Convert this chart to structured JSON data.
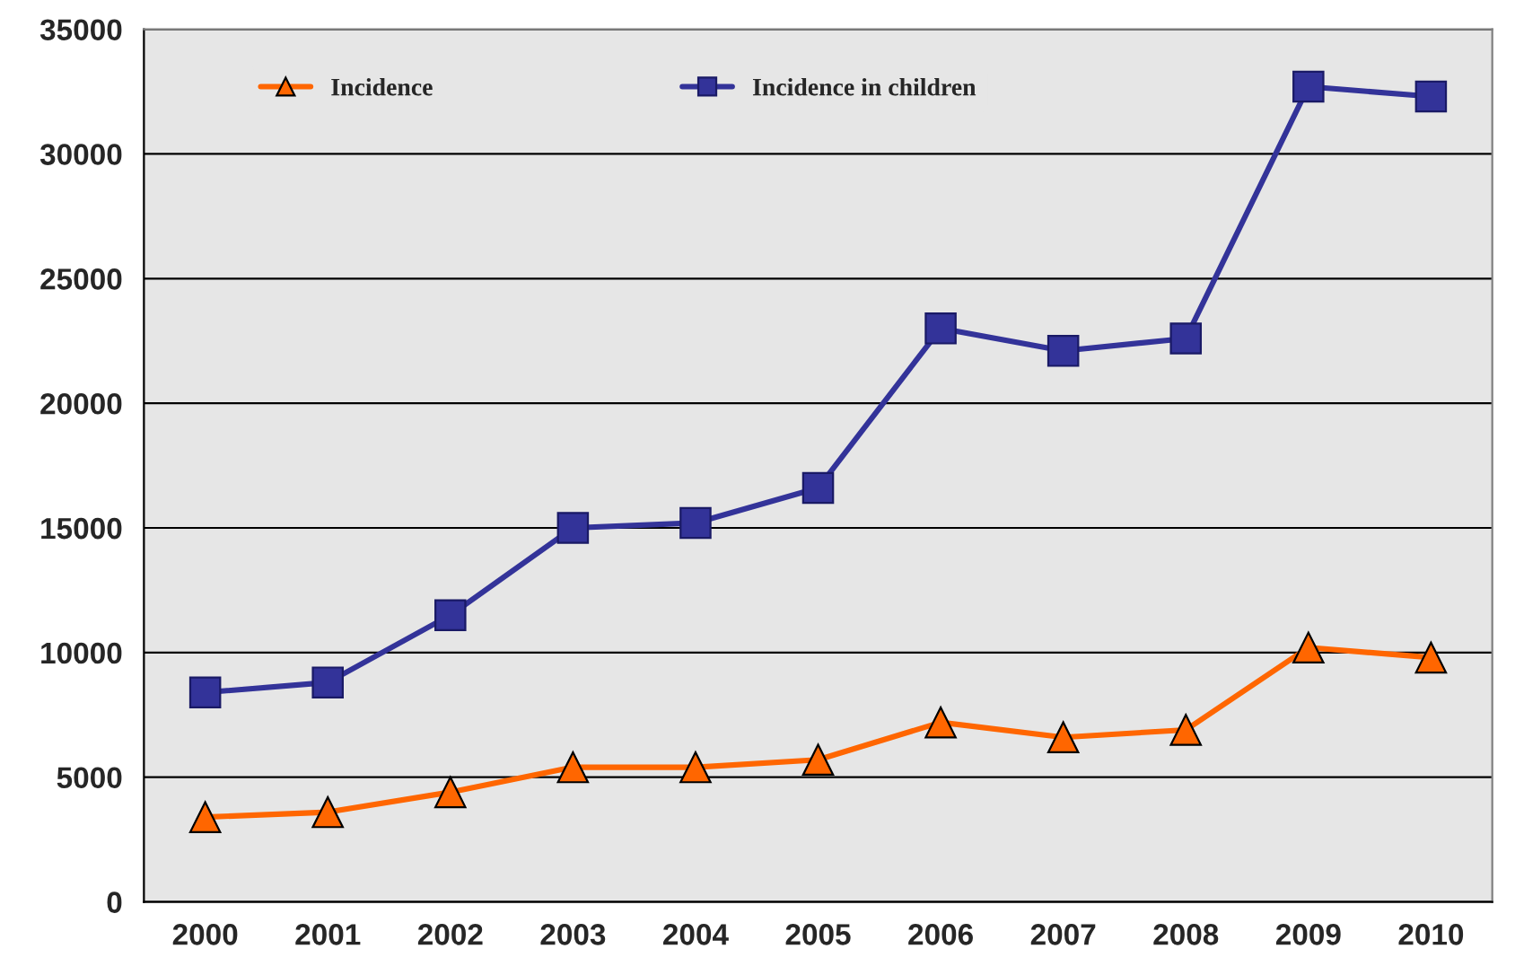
{
  "chart_data": {
    "type": "line",
    "categories": [
      "2000",
      "2001",
      "2002",
      "2003",
      "2004",
      "2005",
      "2006",
      "2007",
      "2008",
      "2009",
      "2010"
    ],
    "series": [
      {
        "name": "Incidence",
        "color": "#ff6600",
        "marker": "triangle",
        "values": [
          3400,
          3600,
          4400,
          5400,
          5400,
          5700,
          7200,
          6600,
          6900,
          10200,
          9800
        ]
      },
      {
        "name": "Incidence in children",
        "color": "#333399",
        "marker": "square",
        "values": [
          8400,
          8800,
          11500,
          15000,
          15200,
          16600,
          23000,
          22100,
          22600,
          32700,
          32300
        ]
      }
    ],
    "ylim": [
      0,
      35000
    ],
    "yticks": [
      0,
      5000,
      10000,
      15000,
      20000,
      25000,
      30000,
      35000
    ],
    "grid": "y",
    "legend": "top left"
  }
}
